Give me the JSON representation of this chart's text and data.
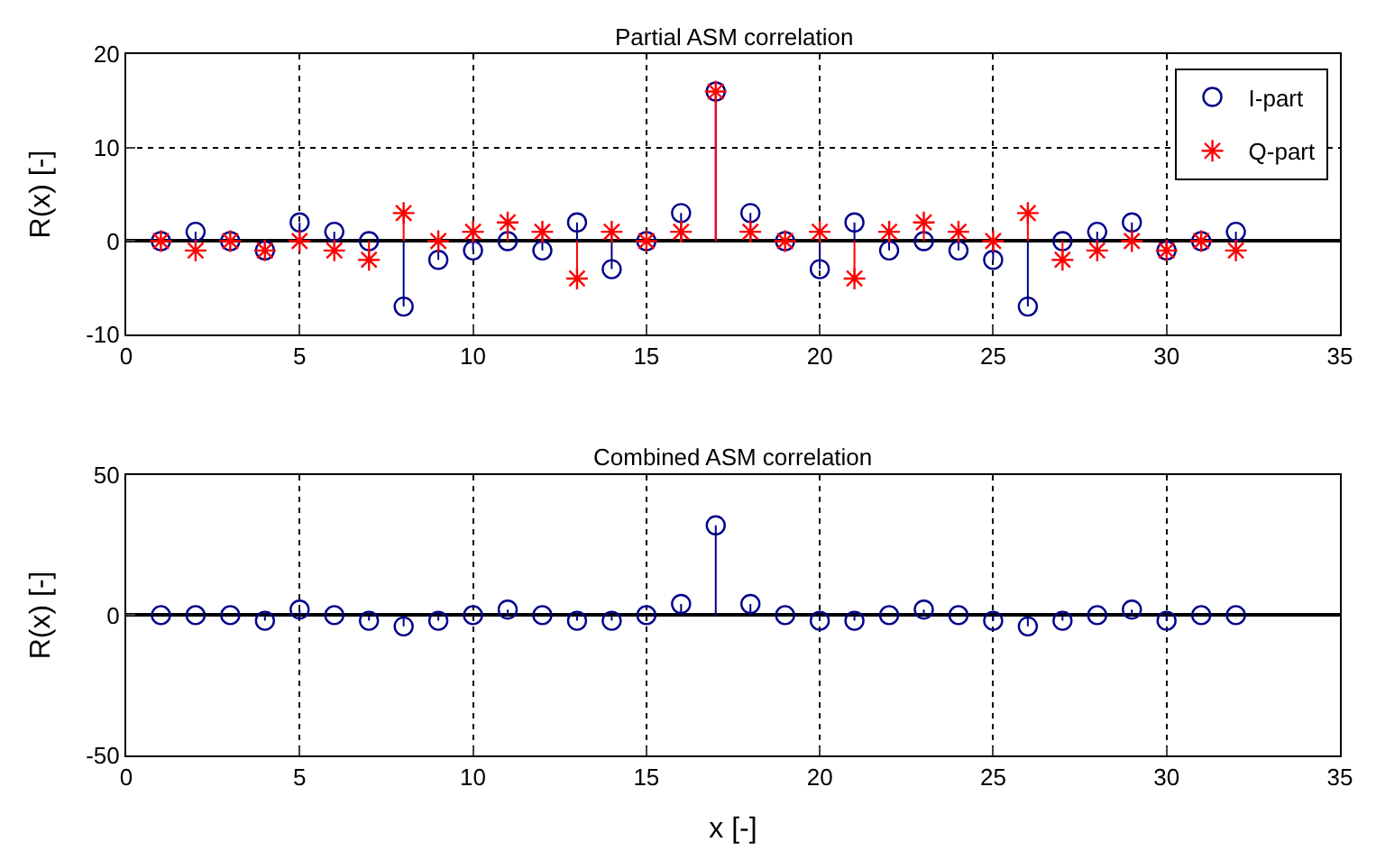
{
  "chart_data": [
    {
      "type": "lollipop",
      "title": "Partial ASM correlation",
      "ylabel": "R(x) [-]",
      "x": [
        1,
        2,
        3,
        4,
        5,
        6,
        7,
        8,
        9,
        10,
        11,
        12,
        13,
        14,
        15,
        16,
        17,
        18,
        19,
        20,
        21,
        22,
        23,
        24,
        25,
        26,
        27,
        28,
        29,
        30,
        31,
        32
      ],
      "series": [
        {
          "name": "I-part",
          "color": "#00008b",
          "marker": "circle",
          "values": [
            0,
            1,
            0,
            -1,
            2,
            1,
            0,
            -7,
            -2,
            -1,
            0,
            -1,
            2,
            -3,
            0,
            3,
            16,
            3,
            0,
            -3,
            2,
            -1,
            0,
            -1,
            -2,
            -7,
            0,
            1,
            2,
            -1,
            0,
            1
          ]
        },
        {
          "name": "Q-part",
          "color": "#ff0000",
          "marker": "cross",
          "values": [
            0,
            -1,
            0,
            -1,
            0,
            -1,
            -2,
            3,
            0,
            1,
            2,
            1,
            -4,
            1,
            0,
            1,
            16,
            1,
            0,
            1,
            -4,
            1,
            2,
            1,
            0,
            3,
            -2,
            -1,
            0,
            -1,
            0,
            -1
          ]
        }
      ],
      "xlim": [
        0,
        35
      ],
      "xticks": [
        0,
        5,
        10,
        15,
        20,
        25,
        30,
        35
      ],
      "ylim": [
        -10,
        20
      ],
      "yticks": [
        -10,
        0,
        10,
        20
      ],
      "grid": true,
      "legend": "top right"
    },
    {
      "type": "lollipop",
      "title": "Combined ASM correlation",
      "xlabel": "x [-]",
      "ylabel": "R(x) [-]",
      "x": [
        1,
        2,
        3,
        4,
        5,
        6,
        7,
        8,
        9,
        10,
        11,
        12,
        13,
        14,
        15,
        16,
        17,
        18,
        19,
        20,
        21,
        22,
        23,
        24,
        25,
        26,
        27,
        28,
        29,
        30,
        31,
        32
      ],
      "series": [
        {
          "color": "#00008b",
          "marker": "circle",
          "values": [
            0,
            0,
            0,
            -2,
            2,
            0,
            -2,
            -4,
            -2,
            0,
            2,
            0,
            -2,
            -2,
            0,
            4,
            32,
            4,
            0,
            -2,
            -2,
            0,
            2,
            0,
            -2,
            -4,
            -2,
            0,
            2,
            -2,
            0,
            0
          ]
        }
      ],
      "xlim": [
        0,
        35
      ],
      "xticks": [
        0,
        5,
        10,
        15,
        20,
        25,
        30,
        35
      ],
      "ylim": [
        -50,
        50
      ],
      "yticks": [
        -50,
        0,
        50
      ],
      "grid": true,
      "legend": false
    }
  ]
}
